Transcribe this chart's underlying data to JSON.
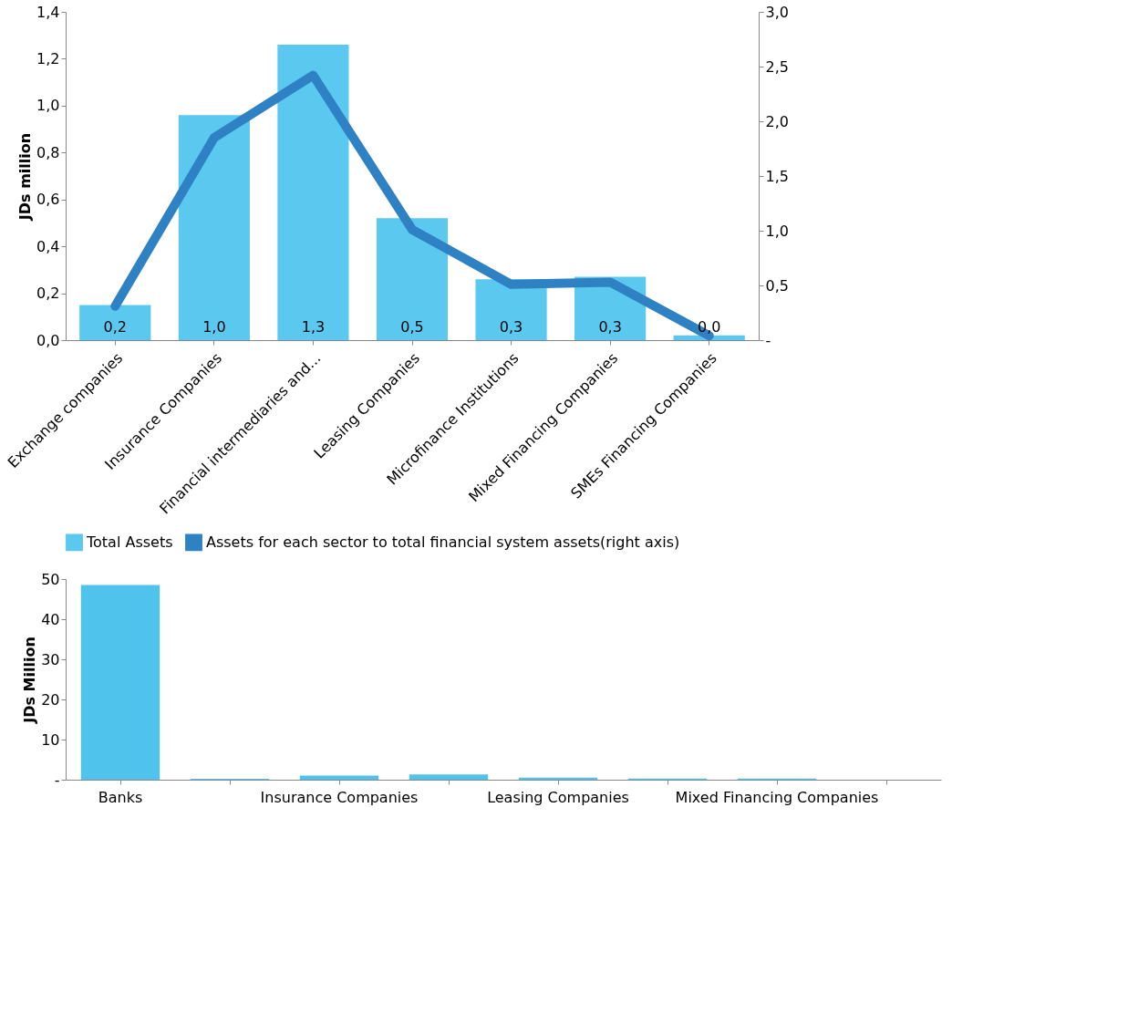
{
  "chart_data": [
    {
      "type": "bar",
      "ylabel": "JDs million",
      "legend": "bottom",
      "categories": [
        "Exchange companies",
        "Insurance Companies",
        "Financial intermediaries and...",
        "Leasing Companies",
        "Microfinance Institutions",
        "Mixed Financing Companies",
        "SMEs Financing Companies"
      ],
      "ylim": [
        0,
        1.4
      ],
      "yticks": [
        {
          "value": 0,
          "label": "0,0"
        },
        {
          "value": 0.2,
          "label": "0,2"
        },
        {
          "value": 0.4,
          "label": "0,4"
        },
        {
          "value": 0.6,
          "label": "0,6"
        },
        {
          "value": 0.8,
          "label": "0,8"
        },
        {
          "value": 1.0,
          "label": "1,0"
        },
        {
          "value": 1.2,
          "label": "1,2"
        },
        {
          "value": 1.4,
          "label": "1,4"
        }
      ],
      "y2lim": [
        0,
        3
      ],
      "y2ticks": [
        {
          "value": 0,
          "label": "-"
        },
        {
          "value": 0.5,
          "label": "0,5"
        },
        {
          "value": 1.0,
          "label": "1,0"
        },
        {
          "value": 1.5,
          "label": "1,5"
        },
        {
          "value": 2.0,
          "label": "2,0"
        },
        {
          "value": 2.5,
          "label": "2,5"
        },
        {
          "value": 3.0,
          "label": "3,0"
        }
      ],
      "series": [
        {
          "name": "Total Assets",
          "type": "bar",
          "color": "#5bc8f0",
          "values": [
            0.15,
            0.96,
            1.26,
            0.52,
            0.26,
            0.27,
            0.02
          ],
          "value_labels": [
            "0,2",
            "1,0",
            "1,3",
            "0,5",
            "0,3",
            "0,3",
            "0,0"
          ]
        },
        {
          "name": "Assets for each sector to total financial system assets(right axis)",
          "type": "line",
          "axis": "y2",
          "color": "#2e82c4",
          "values": [
            0.31,
            1.85,
            2.42,
            1.01,
            0.51,
            0.53,
            0.04
          ]
        }
      ]
    },
    {
      "type": "bar",
      "ylabel": "JDs Million",
      "categories": [
        "Banks",
        null,
        "Insurance Companies",
        null,
        "Leasing Companies",
        null,
        "Mixed Financing Companies",
        null
      ],
      "ylim": [
        0,
        50
      ],
      "yticks": [
        {
          "value": 0,
          "label": "-"
        },
        10,
        20,
        30,
        40,
        50
      ],
      "color": "#4fc3ec",
      "values": [
        48.5,
        0.2,
        1.0,
        1.3,
        0.5,
        0.3,
        0.3,
        0.0
      ]
    }
  ]
}
